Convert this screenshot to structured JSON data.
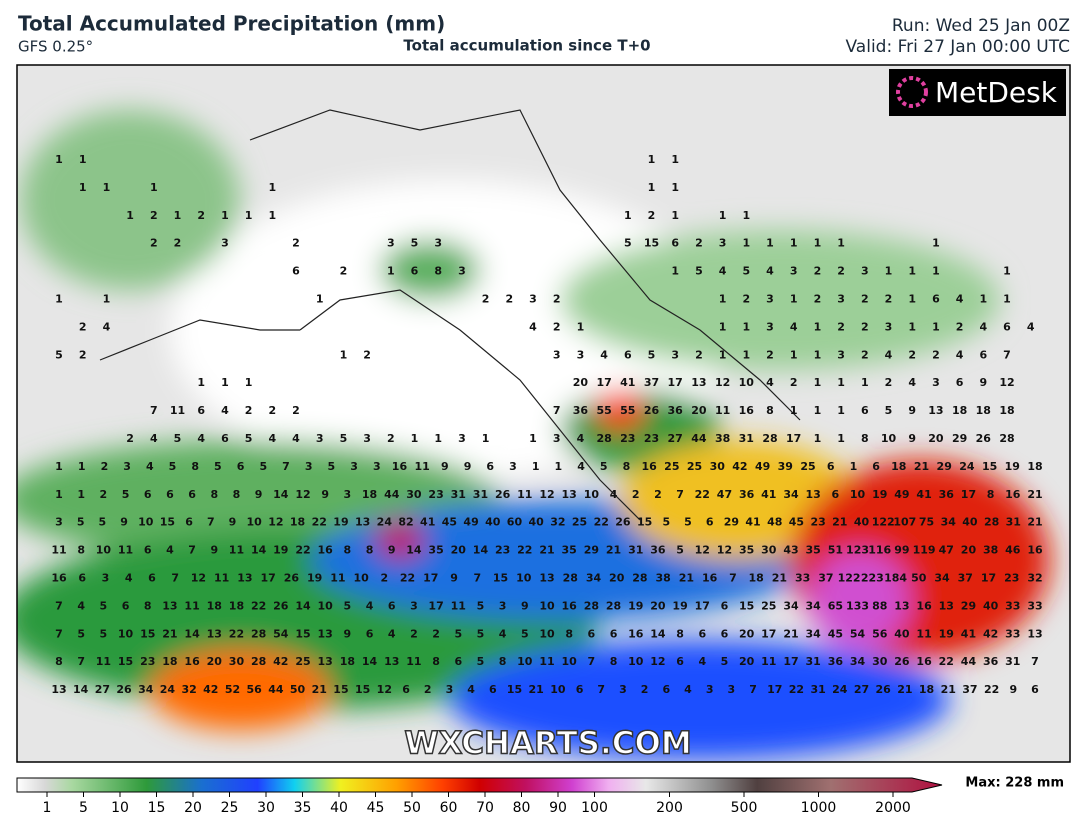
{
  "header": {
    "title": "Total Accumulated Precipitation (mm)",
    "model": "GFS 0.25°",
    "subtitle": "Total accumulation since T+0",
    "run": "Run: Wed 25 Jan 00Z",
    "valid": "Valid: Fri 27 Jan 00:00 UTC"
  },
  "logo": "MetDesk",
  "watermark": "WXCHARTS.COM",
  "grid_values": [
    [
      1,
      1,
      null,
      null,
      null,
      null,
      null,
      null,
      null,
      null,
      null,
      null,
      null,
      null,
      null,
      null,
      null,
      null,
      null,
      null,
      null,
      null,
      null,
      null,
      null,
      1,
      1
    ],
    [
      null,
      1,
      1,
      null,
      1,
      null,
      null,
      null,
      null,
      1,
      null,
      null,
      null,
      null,
      null,
      null,
      null,
      null,
      null,
      null,
      null,
      null,
      null,
      null,
      null,
      1,
      1
    ],
    [
      null,
      null,
      null,
      1,
      2,
      1,
      2,
      1,
      1,
      1,
      null,
      null,
      null,
      null,
      null,
      null,
      null,
      null,
      null,
      null,
      null,
      null,
      null,
      null,
      1,
      2,
      1,
      null,
      1,
      1
    ],
    [
      null,
      null,
      null,
      null,
      2,
      2,
      null,
      3,
      null,
      null,
      2,
      null,
      null,
      null,
      3,
      5,
      3,
      null,
      null,
      null,
      null,
      null,
      null,
      null,
      5,
      15,
      6,
      2,
      3,
      1,
      1,
      1,
      1,
      1,
      null,
      null,
      null,
      1
    ],
    [
      null,
      null,
      null,
      null,
      null,
      null,
      null,
      null,
      null,
      null,
      6,
      null,
      2,
      null,
      1,
      6,
      8,
      3,
      null,
      null,
      null,
      null,
      null,
      null,
      null,
      null,
      1,
      5,
      4,
      5,
      4,
      3,
      2,
      2,
      3,
      1,
      1,
      1,
      null,
      null,
      1
    ],
    [
      1,
      null,
      1,
      null,
      null,
      null,
      null,
      null,
      null,
      null,
      null,
      1,
      null,
      null,
      null,
      null,
      null,
      null,
      2,
      2,
      3,
      2,
      null,
      null,
      null,
      null,
      null,
      null,
      1,
      2,
      3,
      1,
      2,
      3,
      2,
      2,
      1,
      6,
      4,
      1,
      1
    ],
    [
      null,
      2,
      4,
      null,
      null,
      null,
      null,
      null,
      null,
      null,
      null,
      null,
      null,
      null,
      null,
      null,
      null,
      null,
      null,
      null,
      4,
      2,
      1,
      null,
      null,
      null,
      null,
      null,
      1,
      1,
      3,
      4,
      1,
      2,
      2,
      3,
      1,
      1,
      2,
      4,
      6,
      4
    ],
    [
      5,
      2,
      null,
      null,
      null,
      null,
      null,
      null,
      null,
      null,
      null,
      null,
      1,
      2,
      null,
      null,
      null,
      null,
      null,
      null,
      null,
      3,
      3,
      4,
      6,
      5,
      3,
      2,
      1,
      1,
      2,
      1,
      1,
      3,
      2,
      4,
      2,
      2,
      4,
      6,
      7
    ],
    [
      null,
      null,
      null,
      null,
      null,
      null,
      1,
      1,
      1,
      null,
      null,
      null,
      null,
      null,
      null,
      null,
      null,
      null,
      null,
      null,
      null,
      null,
      20,
      17,
      41,
      37,
      17,
      13,
      12,
      10,
      4,
      2,
      1,
      1,
      1,
      2,
      4,
      3,
      6,
      9,
      12
    ],
    [
      null,
      null,
      null,
      null,
      7,
      11,
      6,
      4,
      2,
      2,
      2,
      null,
      null,
      null,
      null,
      null,
      null,
      null,
      null,
      null,
      null,
      7,
      36,
      55,
      55,
      26,
      36,
      20,
      11,
      16,
      8,
      1,
      1,
      1,
      6,
      5,
      9,
      13,
      18,
      18,
      18
    ],
    [
      null,
      null,
      null,
      2,
      4,
      5,
      4,
      6,
      5,
      4,
      4,
      3,
      5,
      3,
      2,
      1,
      1,
      3,
      1,
      null,
      1,
      3,
      4,
      28,
      23,
      23,
      27,
      44,
      38,
      31,
      28,
      17,
      1,
      1,
      8,
      10,
      9,
      20,
      29,
      26,
      28
    ],
    [
      1,
      1,
      2,
      3,
      4,
      5,
      8,
      5,
      6,
      5,
      7,
      3,
      5,
      3,
      3,
      16,
      11,
      9,
      9,
      6,
      3,
      1,
      1,
      4,
      5,
      8,
      16,
      25,
      25,
      30,
      42,
      49,
      39,
      25,
      6,
      1,
      6,
      18,
      21,
      29,
      24,
      15,
      19,
      18
    ],
    [
      1,
      1,
      2,
      5,
      6,
      6,
      6,
      8,
      8,
      9,
      14,
      12,
      9,
      3,
      18,
      44,
      30,
      23,
      31,
      31,
      26,
      11,
      12,
      13,
      10,
      4,
      2,
      2,
      7,
      22,
      47,
      36,
      41,
      34,
      13,
      6,
      10,
      19,
      49,
      41,
      36,
      17,
      8,
      16,
      21
    ],
    [
      3,
      5,
      5,
      9,
      10,
      15,
      6,
      7,
      9,
      10,
      12,
      18,
      22,
      19,
      13,
      24,
      82,
      41,
      45,
      49,
      40,
      60,
      40,
      32,
      25,
      22,
      26,
      15,
      5,
      5,
      6,
      29,
      41,
      48,
      45,
      23,
      21,
      40,
      122,
      107,
      75,
      34,
      40,
      28,
      31,
      21
    ],
    [
      11,
      8,
      10,
      11,
      6,
      4,
      7,
      9,
      11,
      14,
      19,
      22,
      16,
      8,
      8,
      9,
      14,
      35,
      20,
      14,
      23,
      22,
      21,
      35,
      29,
      21,
      31,
      36,
      5,
      12,
      12,
      35,
      30,
      43,
      35,
      51,
      123,
      116,
      99,
      119,
      47,
      20,
      38,
      46,
      16
    ],
    [
      16,
      6,
      3,
      4,
      6,
      7,
      12,
      11,
      13,
      17,
      26,
      19,
      11,
      10,
      2,
      22,
      17,
      9,
      7,
      15,
      10,
      13,
      28,
      34,
      20,
      28,
      38,
      21,
      16,
      7,
      18,
      21,
      33,
      37,
      122,
      223,
      184,
      50,
      34,
      37,
      17,
      23,
      32
    ],
    [
      7,
      4,
      5,
      6,
      8,
      13,
      11,
      18,
      18,
      22,
      26,
      14,
      10,
      5,
      4,
      6,
      3,
      17,
      11,
      5,
      3,
      9,
      10,
      16,
      28,
      28,
      19,
      20,
      19,
      17,
      6,
      15,
      25,
      34,
      34,
      65,
      133,
      88,
      13,
      16,
      13,
      29,
      40,
      33,
      33
    ],
    [
      7,
      5,
      5,
      10,
      15,
      21,
      14,
      13,
      22,
      28,
      54,
      15,
      13,
      9,
      6,
      4,
      2,
      2,
      5,
      5,
      4,
      5,
      10,
      8,
      6,
      6,
      16,
      14,
      8,
      6,
      6,
      20,
      17,
      21,
      34,
      45,
      54,
      56,
      40,
      11,
      19,
      41,
      42,
      33,
      13
    ],
    [
      8,
      7,
      11,
      15,
      23,
      18,
      16,
      20,
      30,
      28,
      42,
      25,
      13,
      18,
      14,
      13,
      11,
      8,
      6,
      5,
      8,
      10,
      11,
      10,
      7,
      8,
      10,
      12,
      6,
      4,
      5,
      20,
      11,
      17,
      31,
      36,
      34,
      30,
      26,
      16,
      22,
      44,
      36,
      31,
      7
    ],
    [
      13,
      14,
      27,
      26,
      34,
      24,
      32,
      42,
      52,
      56,
      44,
      50,
      21,
      15,
      15,
      12,
      6,
      2,
      3,
      4,
      6,
      15,
      21,
      10,
      6,
      7,
      3,
      2,
      6,
      4,
      3,
      3,
      7,
      17,
      22,
      31,
      24,
      27,
      26,
      21,
      18,
      21,
      37,
      22,
      9,
      6
    ]
  ],
  "colorbar": {
    "labels": [
      1,
      5,
      10,
      15,
      20,
      25,
      30,
      35,
      40,
      45,
      50,
      60,
      70,
      80,
      90,
      100,
      200,
      500,
      1000,
      2000
    ],
    "max_label": "Max: 228 mm"
  }
}
